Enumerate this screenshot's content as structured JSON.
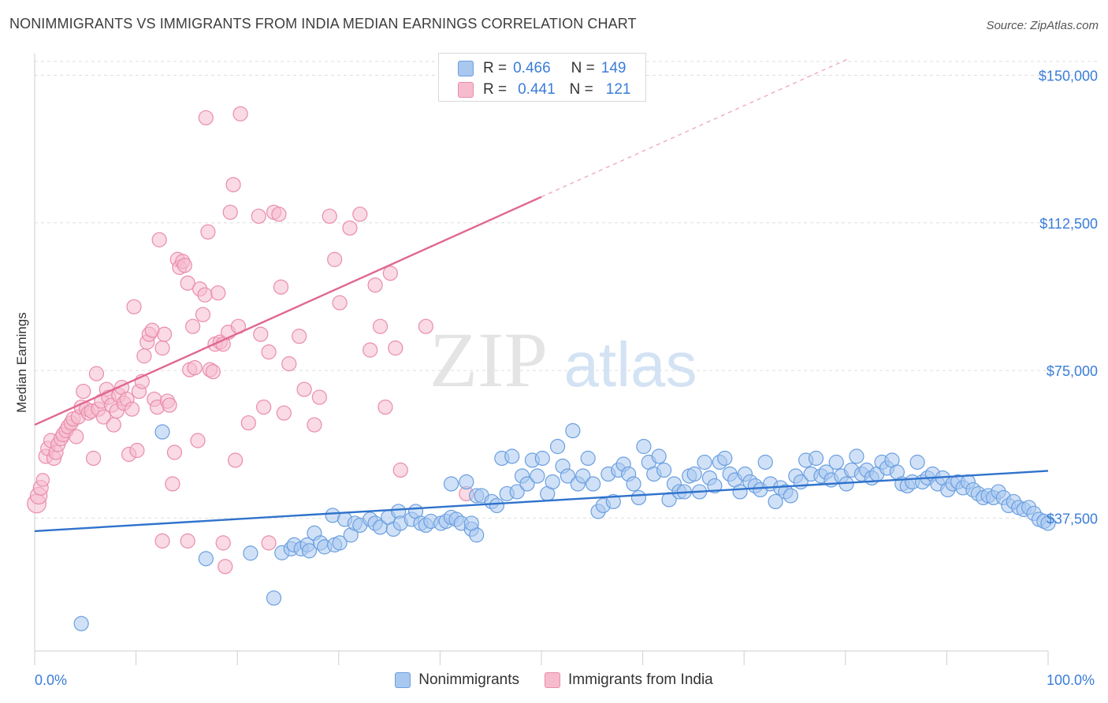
{
  "title": "NONIMMIGRANTS VS IMMIGRANTS FROM INDIA MEDIAN EARNINGS CORRELATION CHART",
  "source": "Source: ZipAtlas.com",
  "watermark": {
    "zip": "ZIP",
    "atlas": "atlas"
  },
  "legend_top": {
    "rows": [
      {
        "r_label": "R =",
        "r_value": "0.466",
        "n_label": "N =",
        "n_value": "149"
      },
      {
        "r_label": "R =",
        "r_value": "0.441",
        "n_label": "N =",
        "n_value": "121"
      }
    ]
  },
  "legend_bottom": [
    "Nonimmigrants",
    "Immigrants from India"
  ],
  "colors": {
    "blue_fill": "#a9c8f0",
    "blue_stroke": "#6a9fe0",
    "blue_line": "#2f72cc",
    "pink_fill": "#f6bccd",
    "pink_stroke": "#e98cab",
    "pink_line": "#e06791",
    "axis_text": "#3b7dd8",
    "grid": "#dedede"
  },
  "chart_data": {
    "type": "scatter",
    "title": "NONIMMIGRANTS VS IMMIGRANTS FROM INDIA MEDIAN EARNINGS CORRELATION CHART",
    "xlabel": "",
    "ylabel": "Median Earnings",
    "x_tick_labels": [
      "0.0%",
      "100.0%"
    ],
    "y_tick_labels": [
      "$37,500",
      "$75,000",
      "$112,500",
      "$150,000"
    ],
    "y_ticks": [
      37500,
      75000,
      112500,
      150000
    ],
    "xlim": [
      0,
      100
    ],
    "ylim": [
      3750,
      153500
    ],
    "grid": true,
    "legend_position": "top-center",
    "series": [
      {
        "name": "Nonimmigrants",
        "color": "#6a9fe0",
        "R": 0.466,
        "N": 149,
        "trend": {
          "x0": 0,
          "y0": 34200,
          "x1": 100,
          "y1": 49500,
          "solid_to": 100
        },
        "points": [
          [
            4.6,
            10700
          ],
          [
            12.6,
            59400
          ],
          [
            16.9,
            27200
          ],
          [
            21.3,
            28600
          ],
          [
            23.6,
            17200
          ],
          [
            24.4,
            28700
          ],
          [
            25.3,
            29700
          ],
          [
            25.6,
            30700
          ],
          [
            26.3,
            29700
          ],
          [
            26.9,
            30700
          ],
          [
            27.1,
            29200
          ],
          [
            27.6,
            33700
          ],
          [
            28.2,
            31200
          ],
          [
            28.6,
            30200
          ],
          [
            29.6,
            30700
          ],
          [
            30.1,
            31200
          ],
          [
            29.4,
            38200
          ],
          [
            30.6,
            37200
          ],
          [
            31.2,
            33200
          ],
          [
            31.6,
            36200
          ],
          [
            32.1,
            35700
          ],
          [
            33.1,
            37200
          ],
          [
            33.6,
            36200
          ],
          [
            34.1,
            35200
          ],
          [
            34.9,
            37700
          ],
          [
            35.4,
            34700
          ],
          [
            35.9,
            39200
          ],
          [
            36.1,
            36200
          ],
          [
            37.2,
            37200
          ],
          [
            37.6,
            39200
          ],
          [
            38.1,
            36200
          ],
          [
            38.6,
            35700
          ],
          [
            39.1,
            36700
          ],
          [
            40.1,
            36200
          ],
          [
            40.6,
            36700
          ],
          [
            41.1,
            37700
          ],
          [
            41.6,
            37200
          ],
          [
            42.1,
            36200
          ],
          [
            43.1,
            34700
          ],
          [
            43.6,
            33200
          ],
          [
            43.1,
            36200
          ],
          [
            41.1,
            46200
          ],
          [
            42.6,
            46700
          ],
          [
            43.6,
            43200
          ],
          [
            44.1,
            43200
          ],
          [
            45.1,
            41700
          ],
          [
            45.6,
            40700
          ],
          [
            46.1,
            52700
          ],
          [
            46.6,
            43700
          ],
          [
            47.1,
            53200
          ],
          [
            47.6,
            44200
          ],
          [
            48.1,
            48200
          ],
          [
            48.6,
            46200
          ],
          [
            49.1,
            52200
          ],
          [
            49.6,
            48200
          ],
          [
            50.1,
            52700
          ],
          [
            50.6,
            43700
          ],
          [
            51.1,
            46700
          ],
          [
            51.6,
            55700
          ],
          [
            52.1,
            50700
          ],
          [
            52.6,
            48200
          ],
          [
            53.1,
            59700
          ],
          [
            53.6,
            46200
          ],
          [
            54.1,
            48200
          ],
          [
            54.6,
            52700
          ],
          [
            55.1,
            46200
          ],
          [
            55.6,
            39200
          ],
          [
            56.1,
            40700
          ],
          [
            56.6,
            48700
          ],
          [
            57.1,
            41700
          ],
          [
            57.6,
            49700
          ],
          [
            58.1,
            51200
          ],
          [
            58.6,
            48700
          ],
          [
            59.1,
            46200
          ],
          [
            59.6,
            42700
          ],
          [
            60.1,
            55700
          ],
          [
            60.6,
            51700
          ],
          [
            61.1,
            48700
          ],
          [
            61.6,
            53200
          ],
          [
            62.1,
            49700
          ],
          [
            62.6,
            42200
          ],
          [
            63.1,
            46200
          ],
          [
            63.6,
            44200
          ],
          [
            64.1,
            44200
          ],
          [
            64.6,
            48200
          ],
          [
            65.1,
            48700
          ],
          [
            65.6,
            44200
          ],
          [
            66.1,
            51700
          ],
          [
            66.6,
            47700
          ],
          [
            67.1,
            45700
          ],
          [
            67.6,
            51700
          ],
          [
            68.1,
            52700
          ],
          [
            68.6,
            48700
          ],
          [
            69.1,
            47200
          ],
          [
            69.6,
            44200
          ],
          [
            70.1,
            48700
          ],
          [
            70.6,
            46700
          ],
          [
            71.1,
            45700
          ],
          [
            71.6,
            44700
          ],
          [
            72.1,
            51700
          ],
          [
            72.6,
            46200
          ],
          [
            73.1,
            41700
          ],
          [
            73.6,
            45200
          ],
          [
            74.1,
            44200
          ],
          [
            74.6,
            43200
          ],
          [
            75.1,
            48200
          ],
          [
            75.6,
            46700
          ],
          [
            76.1,
            52200
          ],
          [
            76.6,
            48700
          ],
          [
            77.1,
            52700
          ],
          [
            77.6,
            48200
          ],
          [
            78.1,
            49200
          ],
          [
            78.6,
            47200
          ],
          [
            79.1,
            51700
          ],
          [
            79.6,
            48200
          ],
          [
            80.1,
            46200
          ],
          [
            80.6,
            49700
          ],
          [
            81.1,
            53200
          ],
          [
            81.6,
            48700
          ],
          [
            82.1,
            49700
          ],
          [
            82.6,
            47700
          ],
          [
            83.1,
            48700
          ],
          [
            83.6,
            51700
          ],
          [
            84.1,
            50200
          ],
          [
            84.6,
            52200
          ],
          [
            85.1,
            49200
          ],
          [
            85.6,
            46200
          ],
          [
            86.1,
            45700
          ],
          [
            86.6,
            46700
          ],
          [
            87.1,
            51700
          ],
          [
            87.6,
            46700
          ],
          [
            88.1,
            47700
          ],
          [
            88.6,
            48700
          ],
          [
            89.1,
            46200
          ],
          [
            89.6,
            47700
          ],
          [
            90.1,
            44700
          ],
          [
            90.6,
            46200
          ],
          [
            91.1,
            46700
          ],
          [
            91.6,
            45200
          ],
          [
            92.1,
            46700
          ],
          [
            92.6,
            44700
          ],
          [
            93.1,
            43700
          ],
          [
            93.6,
            42700
          ],
          [
            94.1,
            43200
          ],
          [
            94.6,
            42700
          ],
          [
            95.1,
            44200
          ],
          [
            95.6,
            42700
          ],
          [
            96.1,
            40700
          ],
          [
            96.6,
            41700
          ],
          [
            97.1,
            40200
          ],
          [
            97.6,
            39700
          ],
          [
            98.1,
            40200
          ],
          [
            98.6,
            38700
          ],
          [
            99.1,
            37200
          ],
          [
            99.6,
            36700
          ],
          [
            100.0,
            36200
          ]
        ]
      },
      {
        "name": "Immigrants from India",
        "color": "#e98cab",
        "R": 0.441,
        "N": 121,
        "trend": {
          "x0": 0,
          "y0": 61200,
          "x1": 100,
          "y1": 177000,
          "solid_to": 50
        },
        "points": [
          [
            0.2,
            41200
          ],
          [
            0.4,
            43200
          ],
          [
            0.6,
            45200
          ],
          [
            0.8,
            47200
          ],
          [
            1.1,
            53200
          ],
          [
            1.3,
            55200
          ],
          [
            1.6,
            57200
          ],
          [
            1.9,
            52700
          ],
          [
            2.1,
            54200
          ],
          [
            2.3,
            56200
          ],
          [
            2.6,
            57700
          ],
          [
            2.8,
            58700
          ],
          [
            3.1,
            59700
          ],
          [
            3.3,
            60700
          ],
          [
            3.6,
            61700
          ],
          [
            3.8,
            62700
          ],
          [
            4.1,
            58200
          ],
          [
            4.3,
            63200
          ],
          [
            4.6,
            65700
          ],
          [
            4.8,
            69700
          ],
          [
            5.1,
            65200
          ],
          [
            5.3,
            64200
          ],
          [
            5.6,
            64700
          ],
          [
            5.8,
            52700
          ],
          [
            6.1,
            74200
          ],
          [
            6.3,
            65200
          ],
          [
            6.6,
            67200
          ],
          [
            6.8,
            63200
          ],
          [
            7.1,
            70200
          ],
          [
            7.3,
            68200
          ],
          [
            7.6,
            66200
          ],
          [
            7.8,
            61200
          ],
          [
            8.1,
            64700
          ],
          [
            8.3,
            68700
          ],
          [
            8.6,
            70700
          ],
          [
            8.8,
            66700
          ],
          [
            9.1,
            67700
          ],
          [
            9.3,
            53700
          ],
          [
            9.6,
            65200
          ],
          [
            9.8,
            91200
          ],
          [
            10.1,
            54700
          ],
          [
            10.3,
            69700
          ],
          [
            10.6,
            72200
          ],
          [
            10.8,
            78700
          ],
          [
            11.1,
            82200
          ],
          [
            11.3,
            84200
          ],
          [
            11.6,
            85200
          ],
          [
            11.8,
            67700
          ],
          [
            12.1,
            65700
          ],
          [
            12.3,
            108200
          ],
          [
            12.6,
            80700
          ],
          [
            12.8,
            84200
          ],
          [
            13.1,
            67200
          ],
          [
            13.3,
            66200
          ],
          [
            13.6,
            46200
          ],
          [
            13.8,
            54200
          ],
          [
            14.1,
            103200
          ],
          [
            14.3,
            101200
          ],
          [
            14.6,
            102700
          ],
          [
            14.8,
            101700
          ],
          [
            15.1,
            97200
          ],
          [
            15.3,
            75200
          ],
          [
            15.6,
            86200
          ],
          [
            15.8,
            75700
          ],
          [
            16.1,
            57200
          ],
          [
            16.3,
            95700
          ],
          [
            16.6,
            89200
          ],
          [
            16.8,
            94200
          ],
          [
            17.1,
            110200
          ],
          [
            17.3,
            75200
          ],
          [
            17.6,
            74700
          ],
          [
            17.8,
            81700
          ],
          [
            18.1,
            94700
          ],
          [
            18.3,
            82200
          ],
          [
            18.6,
            81700
          ],
          [
            18.8,
            25200
          ],
          [
            19.1,
            84700
          ],
          [
            19.3,
            115200
          ],
          [
            19.6,
            122200
          ],
          [
            19.8,
            52200
          ],
          [
            20.1,
            86200
          ],
          [
            20.3,
            140200
          ],
          [
            21.1,
            61700
          ],
          [
            22.1,
            114200
          ],
          [
            22.3,
            84200
          ],
          [
            22.6,
            65700
          ],
          [
            23.1,
            79700
          ],
          [
            23.6,
            115200
          ],
          [
            24.1,
            114700
          ],
          [
            24.3,
            96200
          ],
          [
            24.6,
            64200
          ],
          [
            25.1,
            76700
          ],
          [
            26.1,
            83700
          ],
          [
            26.6,
            70200
          ],
          [
            27.6,
            61200
          ],
          [
            28.1,
            68200
          ],
          [
            29.1,
            114200
          ],
          [
            29.6,
            103200
          ],
          [
            30.1,
            92200
          ],
          [
            31.1,
            111200
          ],
          [
            32.1,
            114700
          ],
          [
            33.1,
            80200
          ],
          [
            33.6,
            96700
          ],
          [
            34.1,
            86200
          ],
          [
            34.6,
            65700
          ],
          [
            35.1,
            99700
          ],
          [
            35.6,
            80700
          ],
          [
            36.1,
            49700
          ],
          [
            38.6,
            86200
          ],
          [
            42.6,
            43700
          ],
          [
            12.6,
            31700
          ],
          [
            15.1,
            31700
          ],
          [
            18.6,
            31200
          ],
          [
            23.1,
            31200
          ],
          [
            16.9,
            139200
          ]
        ]
      }
    ]
  }
}
